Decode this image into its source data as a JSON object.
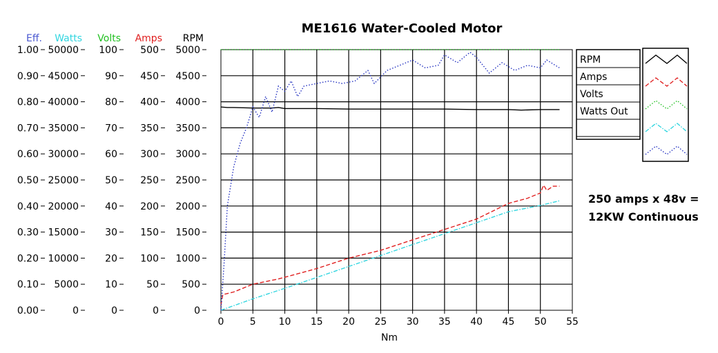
{
  "chart_data": {
    "type": "line",
    "title": "ME1616 Water-Cooled Motor",
    "xlabel": "Nm",
    "xlim": [
      0,
      55
    ],
    "x_ticks": [
      "0",
      "5",
      "10",
      "15",
      "20",
      "25",
      "30",
      "35",
      "40",
      "45",
      "50",
      "55"
    ],
    "grid": true,
    "legend_position": "right",
    "axes": [
      {
        "key": "eff",
        "label": "Eff.",
        "color": "#4a58d0",
        "min": 0,
        "max": 1,
        "ticks": [
          "0.00",
          "0.10",
          "0.20",
          "0.30",
          "0.40",
          "0.50",
          "0.60",
          "0.70",
          "0.80",
          "0.90",
          "1.00"
        ]
      },
      {
        "key": "watts",
        "label": "Watts",
        "color": "#33d6e0",
        "min": 0,
        "max": 50000,
        "ticks": [
          "0",
          "5000",
          "10000",
          "15000",
          "20000",
          "25000",
          "30000",
          "35000",
          "40000",
          "45000",
          "50000"
        ]
      },
      {
        "key": "volts",
        "label": "Volts",
        "color": "#22c022",
        "min": 0,
        "max": 100,
        "ticks": [
          "0",
          "10",
          "20",
          "30",
          "40",
          "50",
          "60",
          "70",
          "80",
          "90",
          "100"
        ]
      },
      {
        "key": "amps",
        "label": "Amps",
        "color": "#e02020",
        "min": 0,
        "max": 500,
        "ticks": [
          "0",
          "50",
          "100",
          "150",
          "200",
          "250",
          "300",
          "350",
          "400",
          "450",
          "500"
        ]
      },
      {
        "key": "rpm",
        "label": "RPM",
        "color": "#000000",
        "min": 0,
        "max": 5000,
        "ticks": [
          "0",
          "500",
          "1000",
          "1500",
          "2000",
          "2500",
          "3000",
          "3500",
          "4000",
          "4500",
          "5000"
        ]
      }
    ],
    "series": [
      {
        "name": "RPM",
        "axis": "rpm",
        "color": "#000000",
        "style": "solid",
        "x": [
          0,
          1,
          2,
          5,
          8,
          9,
          10,
          15,
          20,
          25,
          30,
          35,
          40,
          45,
          47,
          50,
          53
        ],
        "y": [
          3900,
          3890,
          3890,
          3880,
          3880,
          3890,
          3870,
          3870,
          3860,
          3860,
          3860,
          3860,
          3850,
          3850,
          3840,
          3850,
          3850
        ]
      },
      {
        "name": "Amps",
        "axis": "amps",
        "color": "#e02020",
        "style": "dashed",
        "x": [
          0,
          0.3,
          2,
          5,
          9,
          12,
          15,
          20,
          25,
          30,
          35,
          40,
          45,
          48,
          50,
          50.5,
          51,
          52,
          53
        ],
        "y": [
          10,
          30,
          35,
          50,
          60,
          70,
          80,
          100,
          115,
          135,
          155,
          175,
          205,
          215,
          225,
          240,
          230,
          238,
          238
        ]
      },
      {
        "name": "Volts",
        "axis": "volts",
        "color": "#22c022",
        "style": "dotted",
        "x": [
          0,
          5,
          10,
          15,
          20,
          25,
          30,
          35,
          40,
          42,
          45,
          50,
          53
        ],
        "y": [
          100,
          100,
          100,
          100,
          100,
          100,
          100,
          100,
          100,
          100,
          100,
          100,
          100
        ]
      },
      {
        "name": "Watts Out",
        "axis": "watts",
        "color": "#33d6e0",
        "style": "dashdot",
        "x": [
          0,
          5,
          10,
          15,
          20,
          25,
          30,
          35,
          40,
          45,
          50,
          53
        ],
        "y": [
          0,
          2200,
          4200,
          6300,
          8400,
          10500,
          12600,
          14700,
          16800,
          18900,
          20100,
          21000
        ]
      },
      {
        "name": "Eff.",
        "axis": "eff",
        "color": "#2230c0",
        "style": "dotted",
        "x": [
          0,
          0.5,
          1,
          2,
          3,
          4,
          5,
          6,
          7,
          8,
          9,
          10,
          11,
          12,
          13,
          15,
          17,
          19,
          21,
          23,
          24,
          26,
          28,
          30,
          32,
          34,
          35,
          37,
          39,
          40,
          42,
          44,
          46,
          48,
          50,
          51,
          53
        ],
        "y": [
          0,
          0.18,
          0.4,
          0.55,
          0.64,
          0.7,
          0.78,
          0.74,
          0.82,
          0.76,
          0.86,
          0.84,
          0.88,
          0.82,
          0.86,
          0.87,
          0.88,
          0.87,
          0.88,
          0.92,
          0.87,
          0.92,
          0.94,
          0.96,
          0.93,
          0.94,
          0.98,
          0.95,
          0.99,
          0.97,
          0.91,
          0.95,
          0.92,
          0.94,
          0.93,
          0.96,
          0.93
        ]
      }
    ],
    "annotation": [
      "250 amps x 48v =",
      "12KW Continuous"
    ]
  }
}
